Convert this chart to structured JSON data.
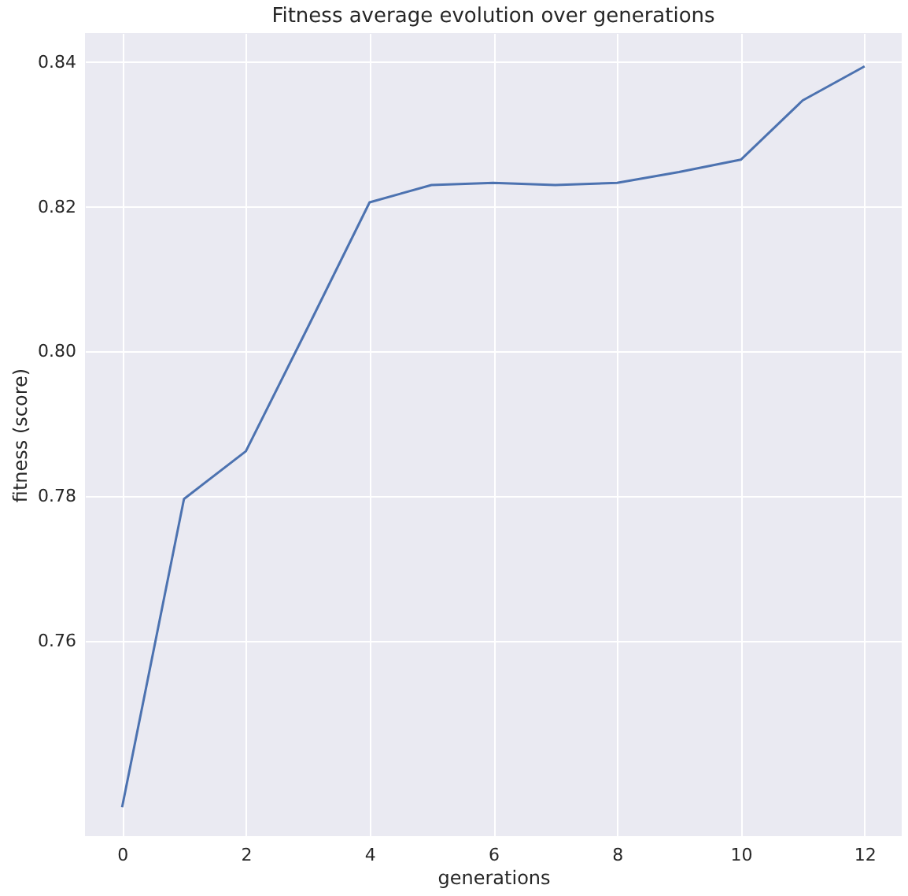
{
  "chart_data": {
    "type": "line",
    "title": "Fitness average evolution over generations",
    "xlabel": "generations",
    "ylabel": "fitness (score)",
    "x": [
      0,
      1,
      2,
      3,
      4,
      5,
      6,
      7,
      8,
      9,
      10,
      11,
      12
    ],
    "series": [
      {
        "color": "#4c72b0",
        "values": [
          0.737,
          0.7796,
          0.7862,
          0.8033,
          0.8206,
          0.823,
          0.8233,
          0.823,
          0.8233,
          0.8248,
          0.8265,
          0.8347,
          0.8394
        ]
      }
    ],
    "xlim": [
      -0.6,
      12.6
    ],
    "xticks": [
      0,
      2,
      4,
      6,
      8,
      10,
      12
    ],
    "ylim": [
      0.733,
      0.844
    ],
    "yticks": [
      0.76,
      0.78,
      {
        "value": 0.8,
        "label": "0.80"
      },
      0.82,
      0.84
    ],
    "grid": true,
    "legend": false,
    "marker": "none",
    "line_style": "solid"
  }
}
